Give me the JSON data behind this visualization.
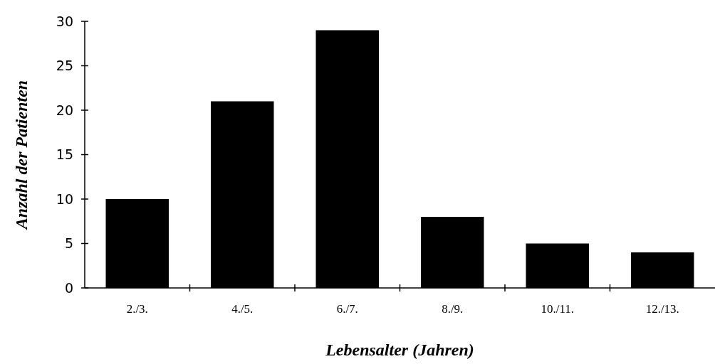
{
  "chart_data": {
    "type": "bar",
    "xlabel": "Lebensalter (Jahren)",
    "ylabel": "Anzahl der Patienten",
    "categories": [
      "2./3.",
      "4./5.",
      "6./7.",
      "8./9.",
      "10./11.",
      "12./13."
    ],
    "values": [
      10,
      21,
      29,
      8,
      5,
      4
    ],
    "color": "#000000",
    "ylim": [
      0,
      30
    ],
    "yticks": [
      0,
      5,
      10,
      15,
      20,
      25,
      30
    ],
    "grid": false
  }
}
